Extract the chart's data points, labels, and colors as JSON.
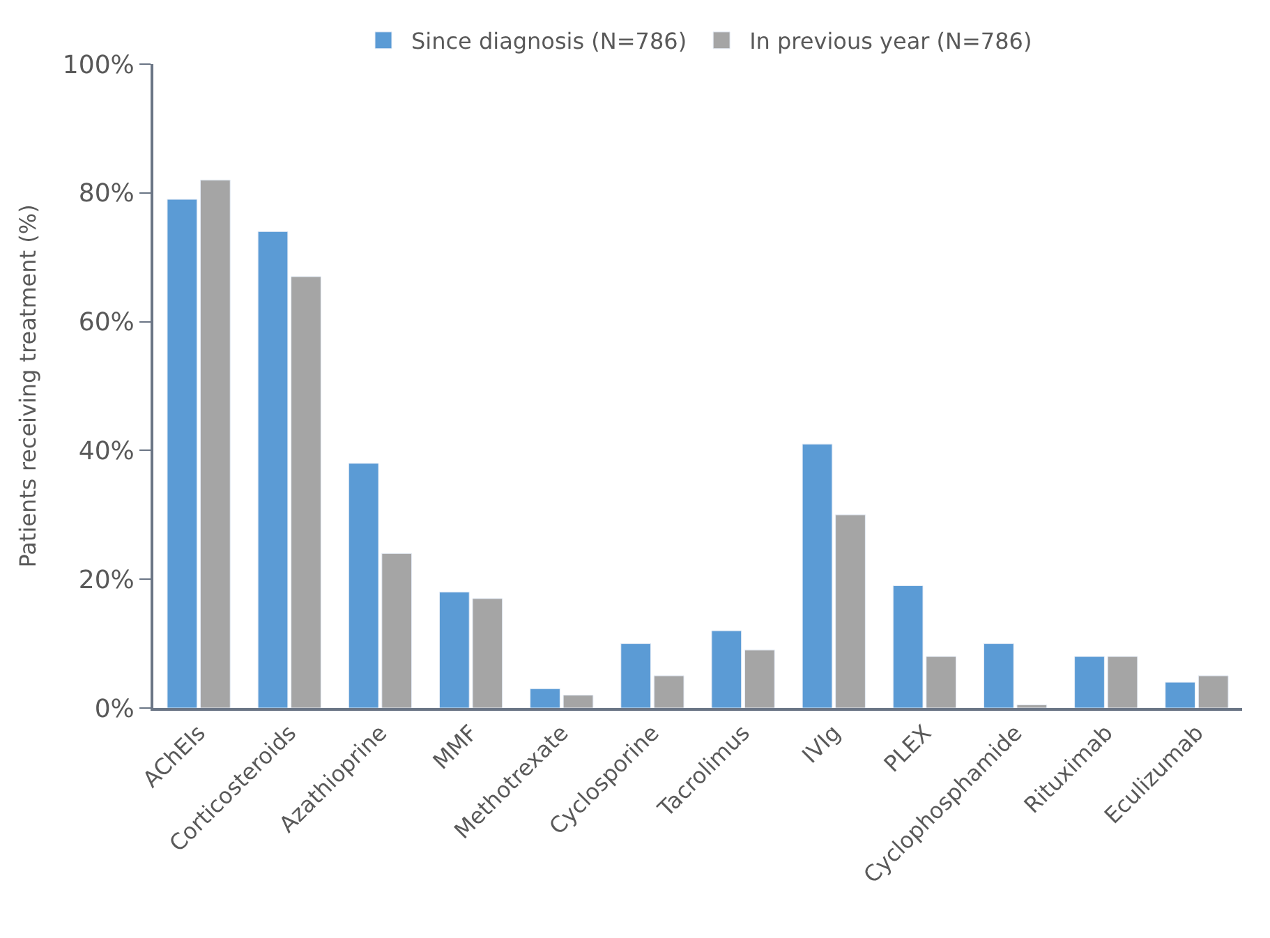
{
  "chart_data": {
    "type": "bar",
    "ylabel": "Patients receiving treatment (%)",
    "categories": [
      "AChEIs",
      "Corticosteroids",
      "Azathioprine",
      "MMF",
      "Methotrexate",
      "Cyclosporine",
      "Tacrolimus",
      "IVIg",
      "PLEX",
      "Cyclophosphamide",
      "Rituximab",
      "Eculizumab"
    ],
    "series": [
      {
        "name": "Since diagnosis (N=786)",
        "color": "#5b9bd5",
        "values": [
          79,
          74,
          38,
          18,
          3,
          10,
          12,
          41,
          19,
          10,
          8,
          4
        ]
      },
      {
        "name": "In previous year (N=786)",
        "color": "#a5a5a5",
        "values": [
          82,
          67,
          24,
          17,
          2,
          5,
          9,
          30,
          8,
          0.5,
          8,
          5
        ]
      }
    ],
    "ylim": [
      0,
      100
    ],
    "yticks": [
      {
        "value": 0,
        "label": "0%"
      },
      {
        "value": 20,
        "label": "20%"
      },
      {
        "value": 40,
        "label": "40%"
      },
      {
        "value": 60,
        "label": "60%"
      },
      {
        "value": 80,
        "label": "80%"
      },
      {
        "value": 100,
        "label": "100%"
      }
    ],
    "legend": "top"
  }
}
